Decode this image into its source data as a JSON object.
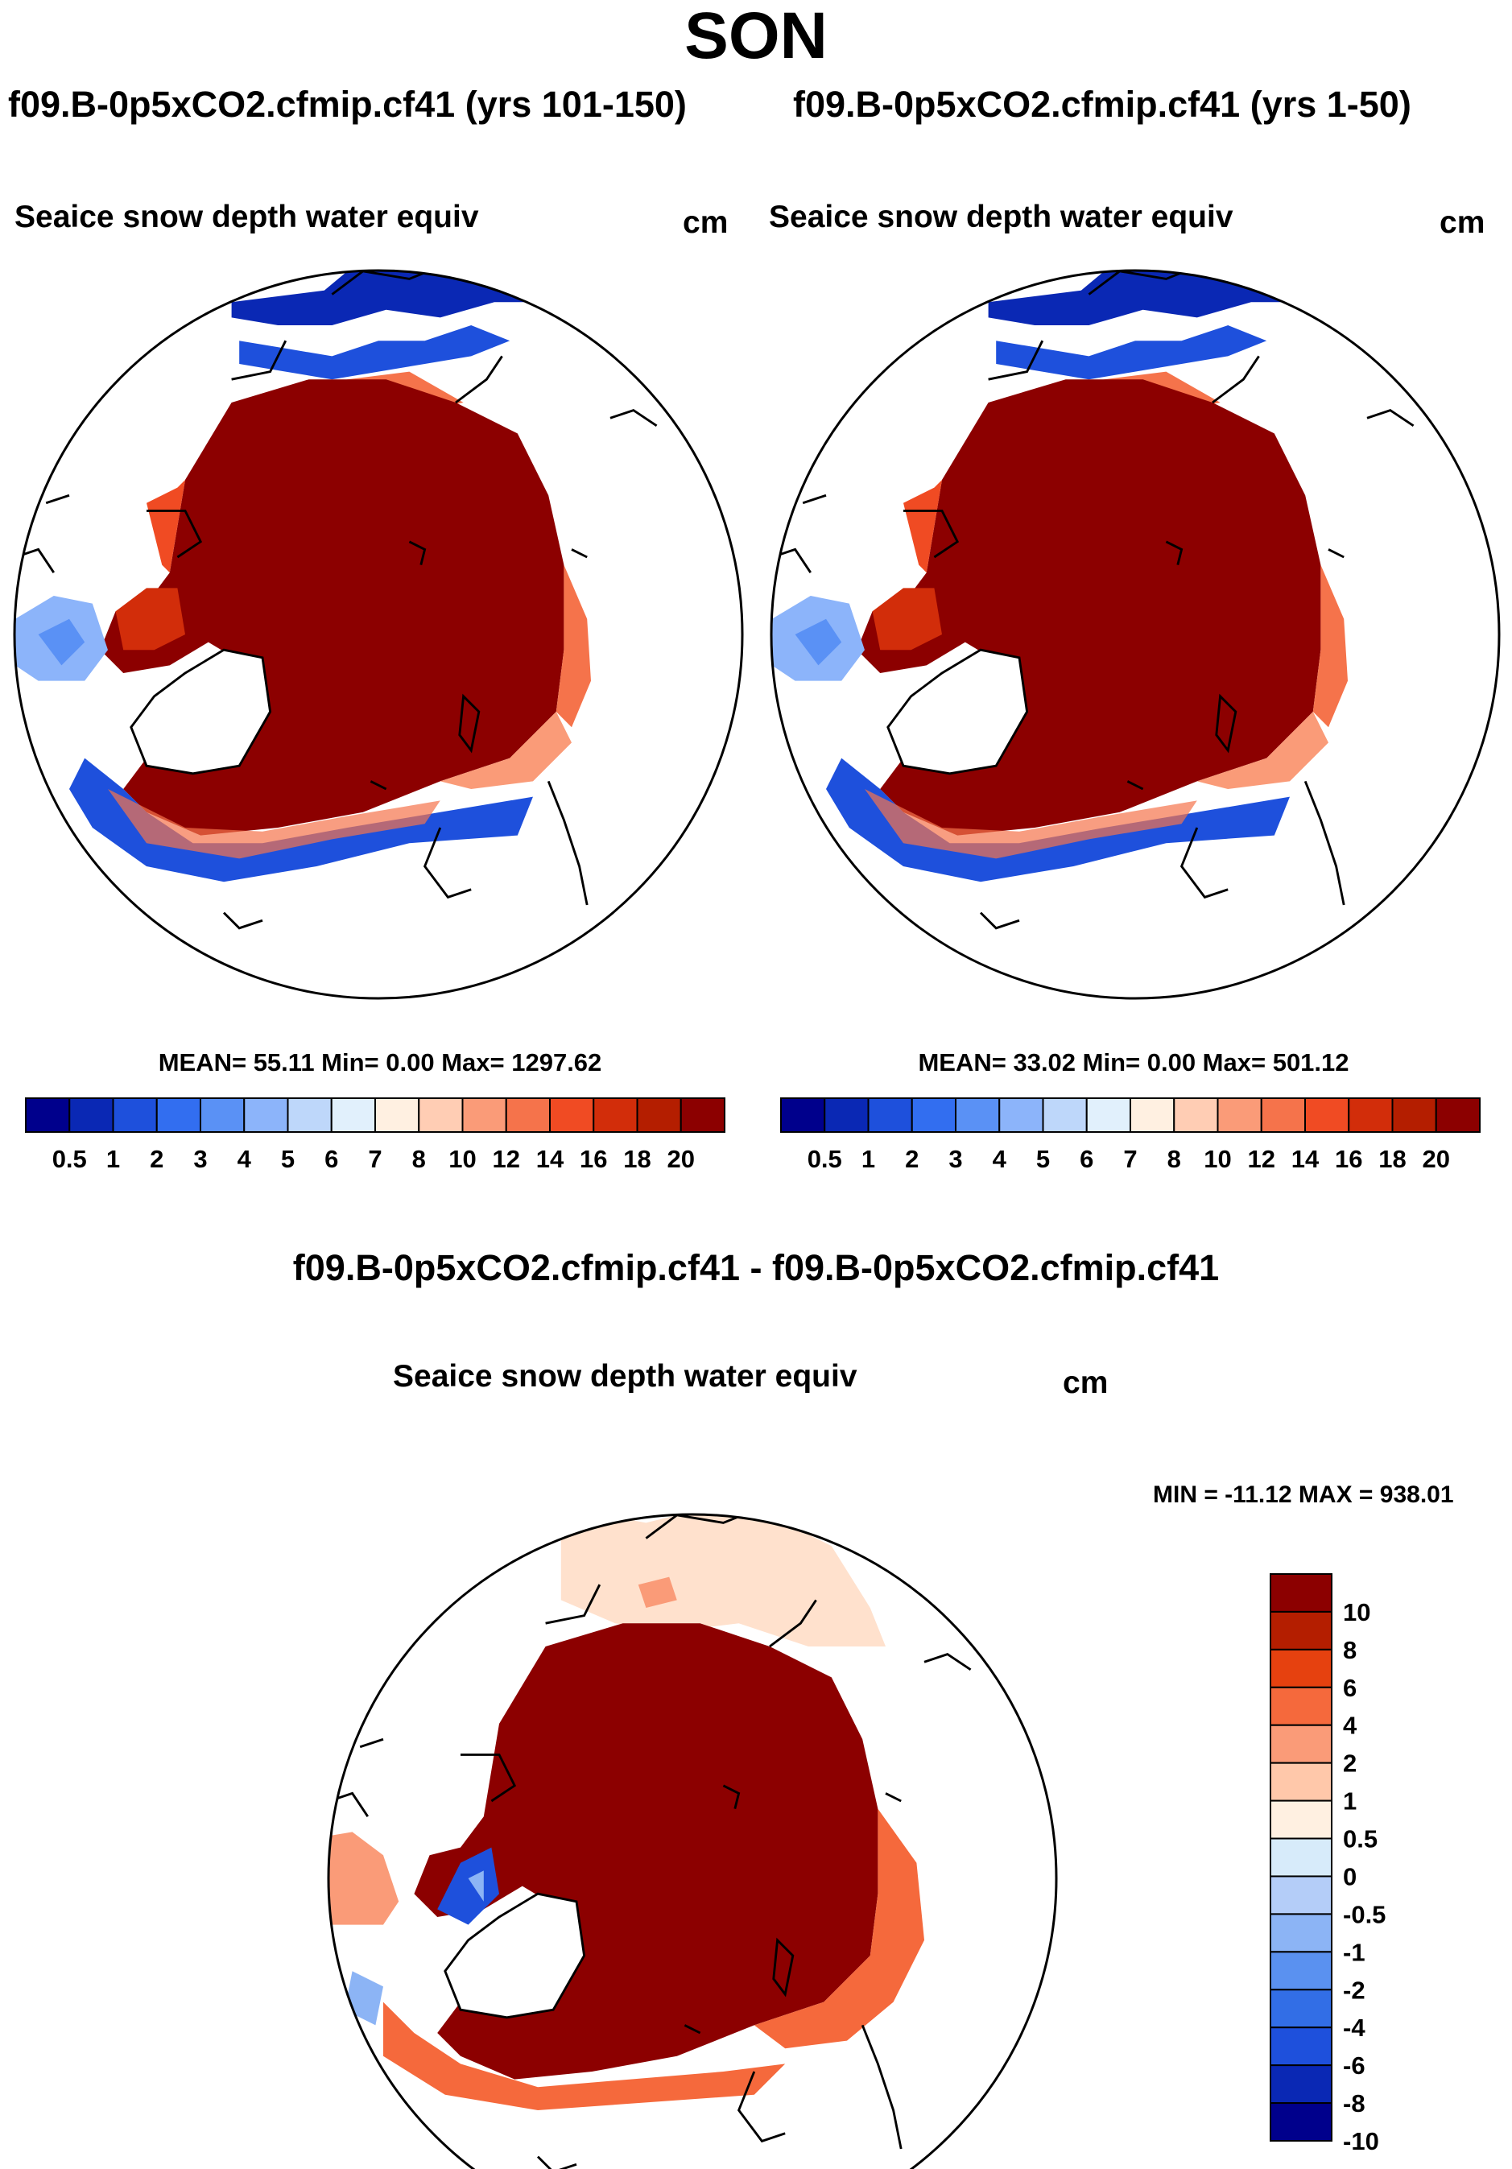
{
  "page": {
    "season": "SON"
  },
  "panels": [
    {
      "case_title": "f09.B-0p5xCO2.cfmip.cf41 (yrs 101-150)",
      "variable_title": "Seaice snow depth water equiv",
      "units": "cm",
      "stats": "MEAN=  55.11  Min=   0.00  Max= 1297.62",
      "mean": 55.11,
      "min": 0.0,
      "max": 1297.62
    },
    {
      "case_title": "f09.B-0p5xCO2.cfmip.cf41 (yrs 1-50)",
      "variable_title": "Seaice snow depth water equiv",
      "units": "cm",
      "stats": "MEAN=  33.02  Min=   0.00  Max= 501.12",
      "mean": 33.02,
      "min": 0.0,
      "max": 501.12
    }
  ],
  "diff_panel": {
    "case_title": "f09.B-0p5xCO2.cfmip.cf41 - f09.B-0p5xCO2.cfmip.cf41",
    "variable_title": "Seaice snow depth water equiv",
    "units": "cm",
    "stats": "MIN = -11.12 MAX = 938.01",
    "min": -11.12,
    "max": 938.01
  },
  "colorbar_abs": {
    "labels": [
      "0.5",
      "1",
      "2",
      "3",
      "4",
      "5",
      "6",
      "7",
      "8",
      "10",
      "12",
      "14",
      "16",
      "18",
      "20"
    ],
    "colors": [
      "#00008c",
      "#0a28b4",
      "#1e50dc",
      "#326ef0",
      "#5a91f5",
      "#8cb4fa",
      "#bed7fa",
      "#e1f0fc",
      "#fff0e1",
      "#ffcdb4",
      "#fa9b78",
      "#f5734b",
      "#f04b23",
      "#d22d0a",
      "#b41e00",
      "#8c0000"
    ]
  },
  "colorbar_diff": {
    "labels": [
      "10",
      "8",
      "6",
      "4",
      "2",
      "1",
      "0.5",
      "0",
      "-0.5",
      "-1",
      "-2",
      "-4",
      "-6",
      "-8",
      "-10"
    ],
    "colors": [
      "#8c0000",
      "#b41e00",
      "#e6410f",
      "#f5693c",
      "#fa9b78",
      "#ffc8aa",
      "#fff0e1",
      "#d7ebfa",
      "#b4cdf8",
      "#8cb4f5",
      "#5a91f0",
      "#326ee6",
      "#1e50dc",
      "#0a28b4",
      "#00008c"
    ]
  }
}
